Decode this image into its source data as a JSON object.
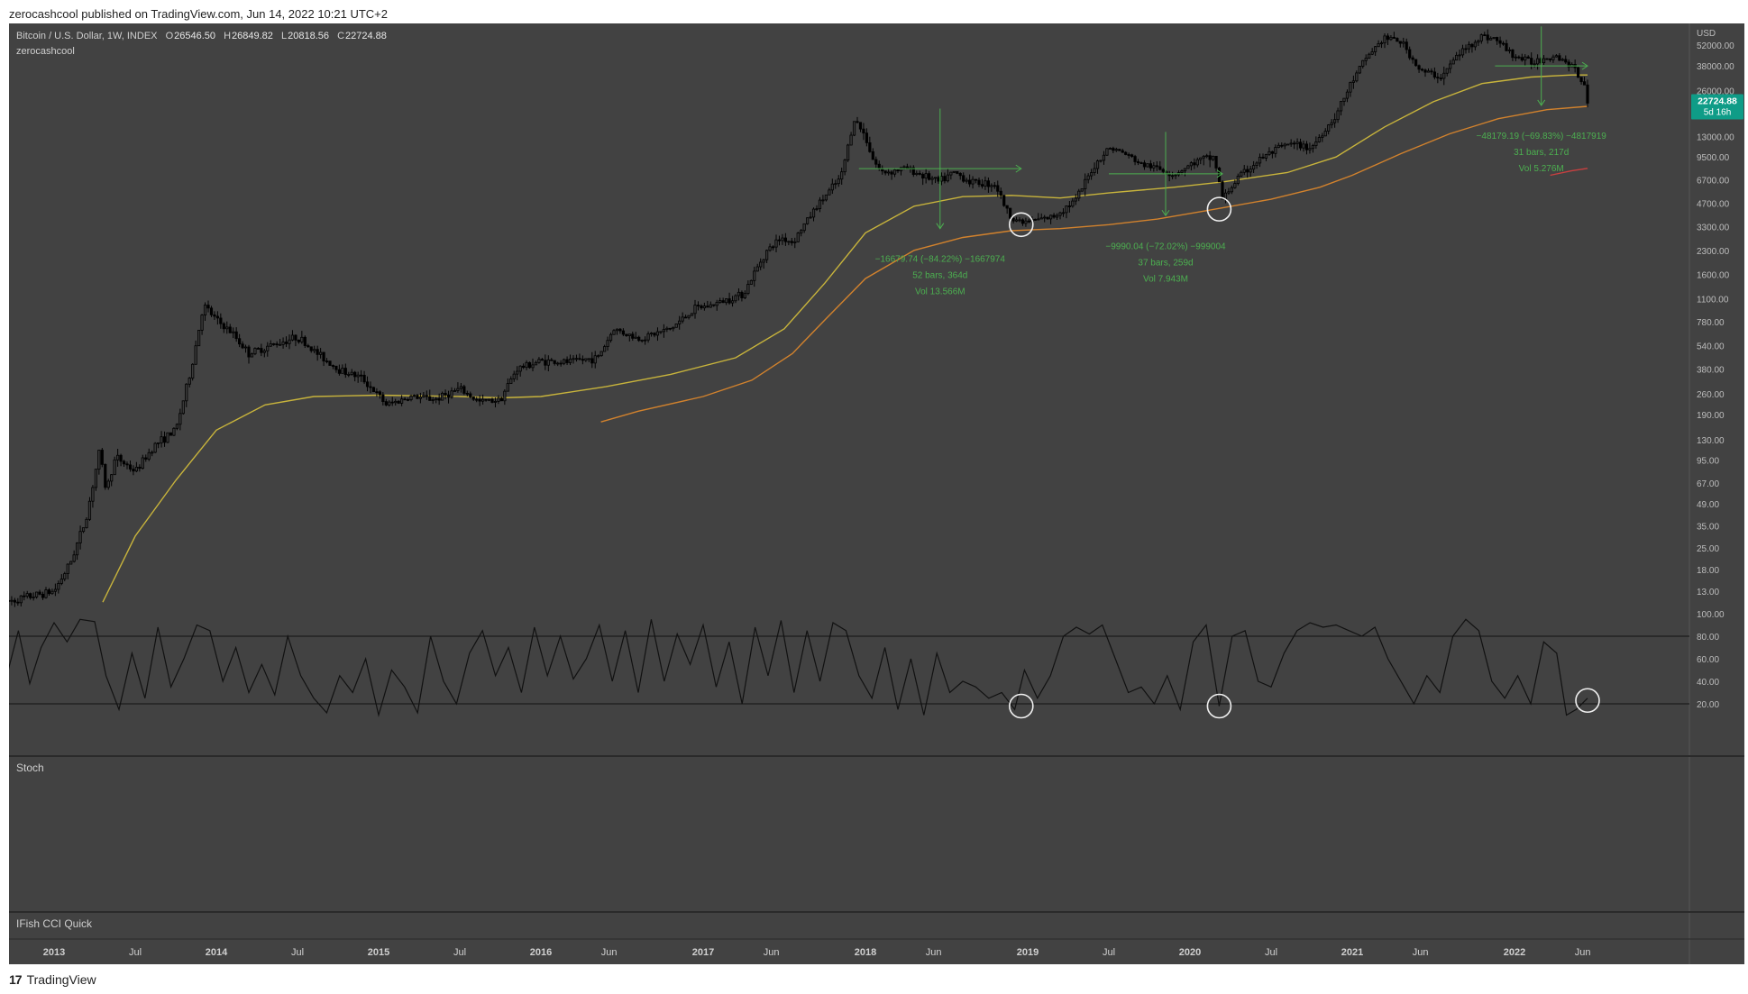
{
  "header": {
    "published": "zerocashcool published on TradingView.com, Jun 14, 2022 10:21 UTC+2"
  },
  "legend": {
    "symbol": "Bitcoin / U.S. Dollar, 1W, INDEX",
    "o_label": "O",
    "o_value": "26546.50",
    "h_label": "H",
    "h_value": "26849.82",
    "l_label": "L",
    "l_value": "20818.56",
    "c_label": "C",
    "c_value": "22724.88",
    "author": "zerocashcool"
  },
  "price_axis": {
    "currency": "USD",
    "last_price": "22724.88",
    "countdown": "5d 16h"
  },
  "panes": {
    "stoch_title": "Stoch",
    "cci_title": "IFish CCI Quick"
  },
  "footer": {
    "brand": "TradingView",
    "logo_text": "17"
  },
  "colors": {
    "chart_bg": "#424242",
    "candle": "#000000",
    "ma_yellow": "#c8b43c",
    "ma_orange": "#d2822d",
    "ma_red": "#c84040",
    "measure_green": "#4caf50",
    "price_badge": "#0f9c87"
  },
  "chart_data": [
    {
      "type": "candlestick",
      "title": "Bitcoin / U.S. Dollar, 1W, INDEX",
      "y_scale": "log",
      "y_ticks": [
        "52000.00",
        "38000.00",
        "26000.00",
        "13000.00",
        "9500.00",
        "6700.00",
        "4700.00",
        "3300.00",
        "2300.00",
        "1600.00",
        "1100.00",
        "780.00",
        "540.00",
        "380.00",
        "260.00",
        "190.00",
        "130.00",
        "95.00",
        "67.00",
        "49.00",
        "35.00",
        "25.00",
        "18.00",
        "13.00"
      ],
      "x_ticks": [
        "2013",
        "Jul",
        "2014",
        "Jul",
        "2015",
        "Jul",
        "2016",
        "Jun",
        "2017",
        "Jun",
        "2018",
        "Jun",
        "2019",
        "Jul",
        "2020",
        "Jul",
        "2021",
        "Jun",
        "2022",
        "Jun"
      ],
      "x_tick_dates": [
        2013.0,
        2013.5,
        2014.0,
        2014.5,
        2015.0,
        2015.5,
        2016.0,
        2016.42,
        2017.0,
        2017.42,
        2018.0,
        2018.42,
        2019.0,
        2019.5,
        2020.0,
        2020.5,
        2021.0,
        2021.42,
        2022.0,
        2022.42
      ],
      "price_path": [
        [
          2012.7,
          11
        ],
        [
          2012.85,
          12
        ],
        [
          2013.0,
          13
        ],
        [
          2013.1,
          20
        ],
        [
          2013.2,
          40
        ],
        [
          2013.28,
          110
        ],
        [
          2013.32,
          60
        ],
        [
          2013.38,
          100
        ],
        [
          2013.5,
          80
        ],
        [
          2013.62,
          120
        ],
        [
          2013.75,
          150
        ],
        [
          2013.85,
          400
        ],
        [
          2013.92,
          1000
        ],
        [
          2014.0,
          800
        ],
        [
          2014.1,
          650
        ],
        [
          2014.2,
          480
        ],
        [
          2014.35,
          550
        ],
        [
          2014.5,
          620
        ],
        [
          2014.6,
          500
        ],
        [
          2014.75,
          380
        ],
        [
          2014.9,
          330
        ],
        [
          2015.05,
          220
        ],
        [
          2015.2,
          250
        ],
        [
          2015.35,
          240
        ],
        [
          2015.5,
          280
        ],
        [
          2015.62,
          230
        ],
        [
          2015.75,
          240
        ],
        [
          2015.85,
          380
        ],
        [
          2016.0,
          430
        ],
        [
          2016.15,
          420
        ],
        [
          2016.35,
          450
        ],
        [
          2016.45,
          700
        ],
        [
          2016.6,
          600
        ],
        [
          2016.8,
          700
        ],
        [
          2016.95,
          950
        ],
        [
          2017.05,
          1000
        ],
        [
          2017.25,
          1200
        ],
        [
          2017.38,
          2200
        ],
        [
          2017.48,
          2800
        ],
        [
          2017.55,
          2600
        ],
        [
          2017.7,
          4500
        ],
        [
          2017.85,
          7000
        ],
        [
          2017.93,
          17000
        ],
        [
          2018.0,
          13000
        ],
        [
          2018.05,
          9000
        ],
        [
          2018.1,
          7500
        ],
        [
          2018.25,
          8000
        ],
        [
          2018.38,
          7000
        ],
        [
          2018.45,
          6500
        ],
        [
          2018.55,
          7500
        ],
        [
          2018.65,
          6500
        ],
        [
          2018.8,
          6300
        ],
        [
          2018.88,
          4000
        ],
        [
          2018.96,
          3500
        ],
        [
          2019.15,
          3800
        ],
        [
          2019.3,
          5000
        ],
        [
          2019.4,
          8000
        ],
        [
          2019.5,
          11000
        ],
        [
          2019.6,
          10000
        ],
        [
          2019.7,
          8500
        ],
        [
          2019.8,
          8000
        ],
        [
          2019.9,
          7300
        ],
        [
          2020.05,
          9000
        ],
        [
          2020.15,
          9500
        ],
        [
          2020.2,
          5000
        ],
        [
          2020.3,
          7000
        ],
        [
          2020.45,
          9500
        ],
        [
          2020.6,
          11500
        ],
        [
          2020.75,
          11000
        ],
        [
          2020.9,
          18000
        ],
        [
          2021.0,
          30000
        ],
        [
          2021.1,
          45000
        ],
        [
          2021.2,
          58000
        ],
        [
          2021.3,
          55000
        ],
        [
          2021.42,
          35000
        ],
        [
          2021.55,
          32000
        ],
        [
          2021.65,
          45000
        ],
        [
          2021.8,
          60000
        ],
        [
          2021.88,
          57000
        ],
        [
          2022.0,
          44000
        ],
        [
          2022.1,
          40000
        ],
        [
          2022.25,
          45000
        ],
        [
          2022.35,
          38000
        ],
        [
          2022.42,
          30000
        ],
        [
          2022.45,
          22724.88
        ]
      ],
      "series": [
        {
          "name": "",
          "role": "moving-average",
          "color": "#c8b43c",
          "points": [
            [
              2013.3,
              11
            ],
            [
              2013.5,
              30
            ],
            [
              2013.75,
              70
            ],
            [
              2014.0,
              150
            ],
            [
              2014.3,
              220
            ],
            [
              2014.6,
              250
            ],
            [
              2015.0,
              255
            ],
            [
              2015.5,
              250
            ],
            [
              2015.75,
              245
            ],
            [
              2016.0,
              250
            ],
            [
              2016.4,
              290
            ],
            [
              2016.8,
              350
            ],
            [
              2017.2,
              450
            ],
            [
              2017.5,
              700
            ],
            [
              2017.75,
              1400
            ],
            [
              2018.0,
              3000
            ],
            [
              2018.3,
              4500
            ],
            [
              2018.6,
              5200
            ],
            [
              2018.9,
              5300
            ],
            [
              2019.2,
              5100
            ],
            [
              2019.5,
              5500
            ],
            [
              2019.9,
              6000
            ],
            [
              2020.2,
              6500
            ],
            [
              2020.6,
              7500
            ],
            [
              2020.9,
              9500
            ],
            [
              2021.2,
              15000
            ],
            [
              2021.5,
              22000
            ],
            [
              2021.8,
              29000
            ],
            [
              2022.1,
              32000
            ],
            [
              2022.35,
              33000
            ],
            [
              2022.45,
              33000
            ]
          ]
        },
        {
          "name": "",
          "role": "moving-average",
          "color": "#d2822d",
          "points": [
            [
              2016.37,
              170
            ],
            [
              2016.6,
              200
            ],
            [
              2017.0,
              250
            ],
            [
              2017.3,
              320
            ],
            [
              2017.55,
              480
            ],
            [
              2017.75,
              800
            ],
            [
              2018.0,
              1500
            ],
            [
              2018.3,
              2300
            ],
            [
              2018.6,
              2800
            ],
            [
              2018.9,
              3100
            ],
            [
              2019.2,
              3200
            ],
            [
              2019.5,
              3400
            ],
            [
              2019.8,
              3700
            ],
            [
              2020.1,
              4200
            ],
            [
              2020.5,
              5000
            ],
            [
              2020.8,
              6000
            ],
            [
              2021.0,
              7200
            ],
            [
              2021.3,
              10000
            ],
            [
              2021.6,
              13500
            ],
            [
              2021.9,
              17000
            ],
            [
              2022.2,
              19500
            ],
            [
              2022.45,
              20500
            ]
          ]
        },
        {
          "name": "",
          "role": "moving-average",
          "color": "#c84040",
          "points": [
            [
              2022.22,
              7200
            ],
            [
              2022.35,
              7700
            ],
            [
              2022.45,
              8000
            ]
          ]
        }
      ],
      "annotations": [
        {
          "text_lines": [
            "−16679.74 (−84.22%) −1667974",
            "52 bars, 364d",
            "Vol 13.566M"
          ],
          "from": [
            2017.96,
            19800
          ],
          "to": [
            2018.96,
            3200
          ]
        },
        {
          "text_lines": [
            "−9990.04 (−72.02%) −999004",
            "37 bars, 259d",
            "Vol 7.943M"
          ],
          "from": [
            2019.5,
            13900
          ],
          "to": [
            2020.2,
            3900
          ]
        },
        {
          "text_lines": [
            "−48179.19 (−69.83%) −4817919",
            "31 bars, 217d",
            "Vol 5.276M"
          ],
          "from": [
            2021.88,
            69000
          ],
          "to": [
            2022.45,
            20800
          ]
        }
      ],
      "circles_price": [
        [
          2018.96,
          3400
        ],
        [
          2020.18,
          4300
        ]
      ]
    },
    {
      "type": "line",
      "title": "Stoch",
      "ylim": [
        0,
        100
      ],
      "y_ticks": [
        "100.00",
        "80.00",
        "60.00",
        "40.00",
        "20.00"
      ],
      "bands": [
        80,
        20
      ],
      "points": [
        [
          2012.7,
          40
        ],
        [
          2012.78,
          85
        ],
        [
          2012.85,
          38
        ],
        [
          2012.92,
          70
        ],
        [
          2013.0,
          92
        ],
        [
          2013.08,
          75
        ],
        [
          2013.16,
          95
        ],
        [
          2013.25,
          93
        ],
        [
          2013.32,
          45
        ],
        [
          2013.4,
          15
        ],
        [
          2013.48,
          65
        ],
        [
          2013.56,
          25
        ],
        [
          2013.64,
          88
        ],
        [
          2013.72,
          35
        ],
        [
          2013.8,
          60
        ],
        [
          2013.88,
          90
        ],
        [
          2013.96,
          85
        ],
        [
          2014.04,
          40
        ],
        [
          2014.12,
          70
        ],
        [
          2014.2,
          30
        ],
        [
          2014.28,
          55
        ],
        [
          2014.36,
          28
        ],
        [
          2014.44,
          80
        ],
        [
          2014.52,
          45
        ],
        [
          2014.6,
          25
        ],
        [
          2014.68,
          12
        ],
        [
          2014.76,
          45
        ],
        [
          2014.84,
          30
        ],
        [
          2014.92,
          60
        ],
        [
          2015.0,
          10
        ],
        [
          2015.08,
          50
        ],
        [
          2015.16,
          35
        ],
        [
          2015.24,
          12
        ],
        [
          2015.32,
          80
        ],
        [
          2015.4,
          40
        ],
        [
          2015.48,
          20
        ],
        [
          2015.56,
          65
        ],
        [
          2015.64,
          85
        ],
        [
          2015.72,
          45
        ],
        [
          2015.8,
          70
        ],
        [
          2015.88,
          30
        ],
        [
          2015.96,
          88
        ],
        [
          2016.04,
          45
        ],
        [
          2016.12,
          80
        ],
        [
          2016.2,
          42
        ],
        [
          2016.28,
          60
        ],
        [
          2016.36,
          90
        ],
        [
          2016.44,
          40
        ],
        [
          2016.52,
          85
        ],
        [
          2016.6,
          30
        ],
        [
          2016.68,
          95
        ],
        [
          2016.76,
          40
        ],
        [
          2016.84,
          82
        ],
        [
          2016.92,
          55
        ],
        [
          2017.0,
          90
        ],
        [
          2017.08,
          35
        ],
        [
          2017.16,
          75
        ],
        [
          2017.24,
          20
        ],
        [
          2017.32,
          88
        ],
        [
          2017.4,
          45
        ],
        [
          2017.48,
          94
        ],
        [
          2017.56,
          30
        ],
        [
          2017.64,
          85
        ],
        [
          2017.72,
          40
        ],
        [
          2017.8,
          92
        ],
        [
          2017.88,
          85
        ],
        [
          2017.96,
          45
        ],
        [
          2018.04,
          25
        ],
        [
          2018.12,
          70
        ],
        [
          2018.2,
          15
        ],
        [
          2018.28,
          60
        ],
        [
          2018.36,
          10
        ],
        [
          2018.44,
          65
        ],
        [
          2018.52,
          30
        ],
        [
          2018.6,
          40
        ],
        [
          2018.68,
          35
        ],
        [
          2018.76,
          25
        ],
        [
          2018.84,
          30
        ],
        [
          2018.92,
          15
        ],
        [
          2018.98,
          50
        ],
        [
          2019.06,
          25
        ],
        [
          2019.14,
          45
        ],
        [
          2019.22,
          80
        ],
        [
          2019.3,
          88
        ],
        [
          2019.38,
          82
        ],
        [
          2019.46,
          90
        ],
        [
          2019.54,
          60
        ],
        [
          2019.62,
          30
        ],
        [
          2019.7,
          35
        ],
        [
          2019.78,
          20
        ],
        [
          2019.86,
          45
        ],
        [
          2019.94,
          15
        ],
        [
          2020.02,
          75
        ],
        [
          2020.1,
          90
        ],
        [
          2020.18,
          18
        ],
        [
          2020.26,
          80
        ],
        [
          2020.34,
          85
        ],
        [
          2020.42,
          40
        ],
        [
          2020.5,
          35
        ],
        [
          2020.58,
          65
        ],
        [
          2020.66,
          85
        ],
        [
          2020.74,
          92
        ],
        [
          2020.82,
          88
        ],
        [
          2020.9,
          90
        ],
        [
          2020.98,
          85
        ],
        [
          2021.06,
          80
        ],
        [
          2021.14,
          88
        ],
        [
          2021.22,
          60
        ],
        [
          2021.3,
          40
        ],
        [
          2021.38,
          20
        ],
        [
          2021.46,
          45
        ],
        [
          2021.54,
          30
        ],
        [
          2021.62,
          80
        ],
        [
          2021.7,
          95
        ],
        [
          2021.78,
          85
        ],
        [
          2021.86,
          40
        ],
        [
          2021.94,
          25
        ],
        [
          2022.02,
          45
        ],
        [
          2022.1,
          20
        ],
        [
          2022.18,
          75
        ],
        [
          2022.26,
          65
        ],
        [
          2022.32,
          10
        ],
        [
          2022.38,
          15
        ],
        [
          2022.45,
          25
        ]
      ],
      "circles": [
        [
          2018.96,
          18
        ],
        [
          2020.18,
          18
        ],
        [
          2022.45,
          23
        ]
      ]
    },
    {
      "type": "line",
      "title": "IFish CCI Quick",
      "points": []
    }
  ]
}
